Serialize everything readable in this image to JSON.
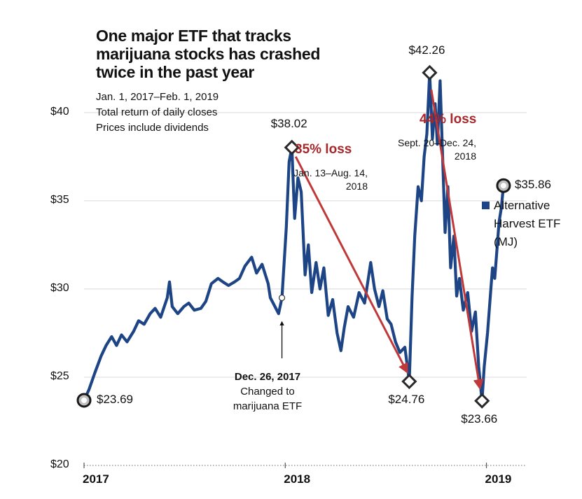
{
  "chart_data": {
    "type": "line",
    "title": "One major ETF that tracks marijuana stocks has crashed twice in the past year",
    "subtitle": [
      "Jan. 1, 2017–Feb. 1, 2019",
      "Total return of daily closes",
      "Prices include dividends"
    ],
    "xlabel": "",
    "ylabel": "",
    "ylim": [
      20,
      44
    ],
    "xlim": [
      "2017-01-01",
      "2019-03-15"
    ],
    "y_ticks": [
      20,
      25,
      30,
      35,
      40
    ],
    "y_tick_labels": [
      "$20",
      "$25",
      "$30",
      "$35",
      "$40"
    ],
    "x_ticks": [
      "2017-01-01",
      "2018-01-01",
      "2019-01-01"
    ],
    "x_tick_labels": [
      "2017",
      "2018",
      "2019"
    ],
    "grid": "horizontal",
    "legend_position": "right",
    "series": [
      {
        "name": "Alternative Harvest ETF (MJ)",
        "color": "#1d4586",
        "points": [
          [
            "2017-01-01",
            23.69
          ],
          [
            "2017-01-10",
            24.3
          ],
          [
            "2017-01-20",
            25.2
          ],
          [
            "2017-02-01",
            26.2
          ],
          [
            "2017-02-10",
            26.8
          ],
          [
            "2017-02-20",
            27.3
          ],
          [
            "2017-03-01",
            26.8
          ],
          [
            "2017-03-10",
            27.4
          ],
          [
            "2017-03-20",
            27.0
          ],
          [
            "2017-04-01",
            27.6
          ],
          [
            "2017-04-10",
            28.2
          ],
          [
            "2017-04-20",
            28.0
          ],
          [
            "2017-05-01",
            28.6
          ],
          [
            "2017-05-10",
            28.9
          ],
          [
            "2017-05-20",
            28.4
          ],
          [
            "2017-06-01",
            29.5
          ],
          [
            "2017-06-05",
            30.4
          ],
          [
            "2017-06-10",
            29.0
          ],
          [
            "2017-06-20",
            28.6
          ],
          [
            "2017-07-01",
            29.0
          ],
          [
            "2017-07-10",
            29.2
          ],
          [
            "2017-07-20",
            28.8
          ],
          [
            "2017-08-01",
            28.9
          ],
          [
            "2017-08-10",
            29.3
          ],
          [
            "2017-08-20",
            30.3
          ],
          [
            "2017-09-01",
            30.6
          ],
          [
            "2017-09-10",
            30.4
          ],
          [
            "2017-09-20",
            30.2
          ],
          [
            "2017-10-01",
            30.4
          ],
          [
            "2017-10-10",
            30.6
          ],
          [
            "2017-10-20",
            31.3
          ],
          [
            "2017-11-01",
            31.8
          ],
          [
            "2017-11-10",
            30.9
          ],
          [
            "2017-11-20",
            31.4
          ],
          [
            "2017-12-01",
            30.3
          ],
          [
            "2017-12-05",
            29.5
          ],
          [
            "2017-12-10",
            29.2
          ],
          [
            "2017-12-15",
            28.9
          ],
          [
            "2017-12-20",
            28.6
          ],
          [
            "2017-12-26",
            29.5
          ],
          [
            "2018-01-03",
            33.5
          ],
          [
            "2018-01-08",
            37.2
          ],
          [
            "2018-01-13",
            38.02
          ],
          [
            "2018-01-18",
            34.0
          ],
          [
            "2018-01-24",
            36.3
          ],
          [
            "2018-01-30",
            35.5
          ],
          [
            "2018-02-06",
            30.8
          ],
          [
            "2018-02-12",
            32.5
          ],
          [
            "2018-02-18",
            29.8
          ],
          [
            "2018-02-26",
            31.5
          ],
          [
            "2018-03-05",
            30.0
          ],
          [
            "2018-03-12",
            31.2
          ],
          [
            "2018-03-20",
            28.5
          ],
          [
            "2018-03-28",
            29.4
          ],
          [
            "2018-04-05",
            27.5
          ],
          [
            "2018-04-12",
            26.5
          ],
          [
            "2018-04-18",
            27.8
          ],
          [
            "2018-04-25",
            29.0
          ],
          [
            "2018-05-05",
            28.4
          ],
          [
            "2018-05-15",
            29.8
          ],
          [
            "2018-05-25",
            29.2
          ],
          [
            "2018-06-05",
            31.5
          ],
          [
            "2018-06-12",
            30.0
          ],
          [
            "2018-06-20",
            29.0
          ],
          [
            "2018-06-27",
            29.9
          ],
          [
            "2018-07-05",
            28.3
          ],
          [
            "2018-07-12",
            28.0
          ],
          [
            "2018-07-20",
            27.0
          ],
          [
            "2018-07-28",
            26.4
          ],
          [
            "2018-08-06",
            26.7
          ],
          [
            "2018-08-14",
            24.76
          ],
          [
            "2018-08-19",
            29.5
          ],
          [
            "2018-08-24",
            33.0
          ],
          [
            "2018-08-30",
            35.8
          ],
          [
            "2018-09-05",
            35.0
          ],
          [
            "2018-09-10",
            37.5
          ],
          [
            "2018-09-15",
            38.8
          ],
          [
            "2018-09-20",
            42.26
          ],
          [
            "2018-09-25",
            38.5
          ],
          [
            "2018-09-30",
            40.5
          ],
          [
            "2018-10-04",
            38.2
          ],
          [
            "2018-10-09",
            41.8
          ],
          [
            "2018-10-14",
            37.0
          ],
          [
            "2018-10-18",
            33.2
          ],
          [
            "2018-10-23",
            35.8
          ],
          [
            "2018-10-28",
            31.2
          ],
          [
            "2018-11-03",
            33.0
          ],
          [
            "2018-11-08",
            29.6
          ],
          [
            "2018-11-13",
            30.6
          ],
          [
            "2018-11-20",
            28.8
          ],
          [
            "2018-11-28",
            29.8
          ],
          [
            "2018-12-05",
            27.6
          ],
          [
            "2018-12-12",
            28.7
          ],
          [
            "2018-12-18",
            25.6
          ],
          [
            "2018-12-24",
            23.66
          ],
          [
            "2018-12-28",
            25.6
          ],
          [
            "2019-01-03",
            27.5
          ],
          [
            "2019-01-08",
            29.6
          ],
          [
            "2019-01-12",
            31.2
          ],
          [
            "2019-01-16",
            30.6
          ],
          [
            "2019-01-20",
            32.2
          ],
          [
            "2019-01-24",
            33.8
          ],
          [
            "2019-01-28",
            34.6
          ],
          [
            "2019-02-01",
            35.86
          ]
        ]
      }
    ],
    "markers": [
      {
        "date": "2017-01-01",
        "value": 23.69,
        "label": "$23.69",
        "shape": "circle"
      },
      {
        "date": "2018-01-13",
        "value": 38.02,
        "label": "$38.02",
        "shape": "diamond"
      },
      {
        "date": "2018-08-14",
        "value": 24.76,
        "label": "$24.76",
        "shape": "diamond"
      },
      {
        "date": "2018-09-20",
        "value": 42.26,
        "label": "$42.26",
        "shape": "diamond"
      },
      {
        "date": "2018-12-24",
        "value": 23.66,
        "label": "$23.66",
        "shape": "diamond"
      },
      {
        "date": "2019-02-01",
        "value": 35.86,
        "label": "$35.86",
        "shape": "circle"
      },
      {
        "date": "2017-12-26",
        "value": 29.5,
        "label": "",
        "shape": "small-circle"
      }
    ],
    "annotations": [
      {
        "type": "loss",
        "text": "35% loss",
        "range": [
          "Jan. 13–Aug. 14,",
          "2018"
        ],
        "from": [
          "2018-01-20",
          37.5
        ],
        "to": [
          "2018-08-10",
          25.3
        ]
      },
      {
        "type": "loss",
        "text": "44% loss",
        "range": [
          "Sept. 20–Dec. 24,",
          "2018"
        ],
        "from": [
          "2018-09-23",
          41.3
        ],
        "to": [
          "2018-12-20",
          24.4
        ]
      },
      {
        "type": "note",
        "date": "2017-12-26",
        "bold": "Dec. 26, 2017",
        "lines": [
          "Changed to",
          "marijuana ETF"
        ]
      }
    ]
  }
}
